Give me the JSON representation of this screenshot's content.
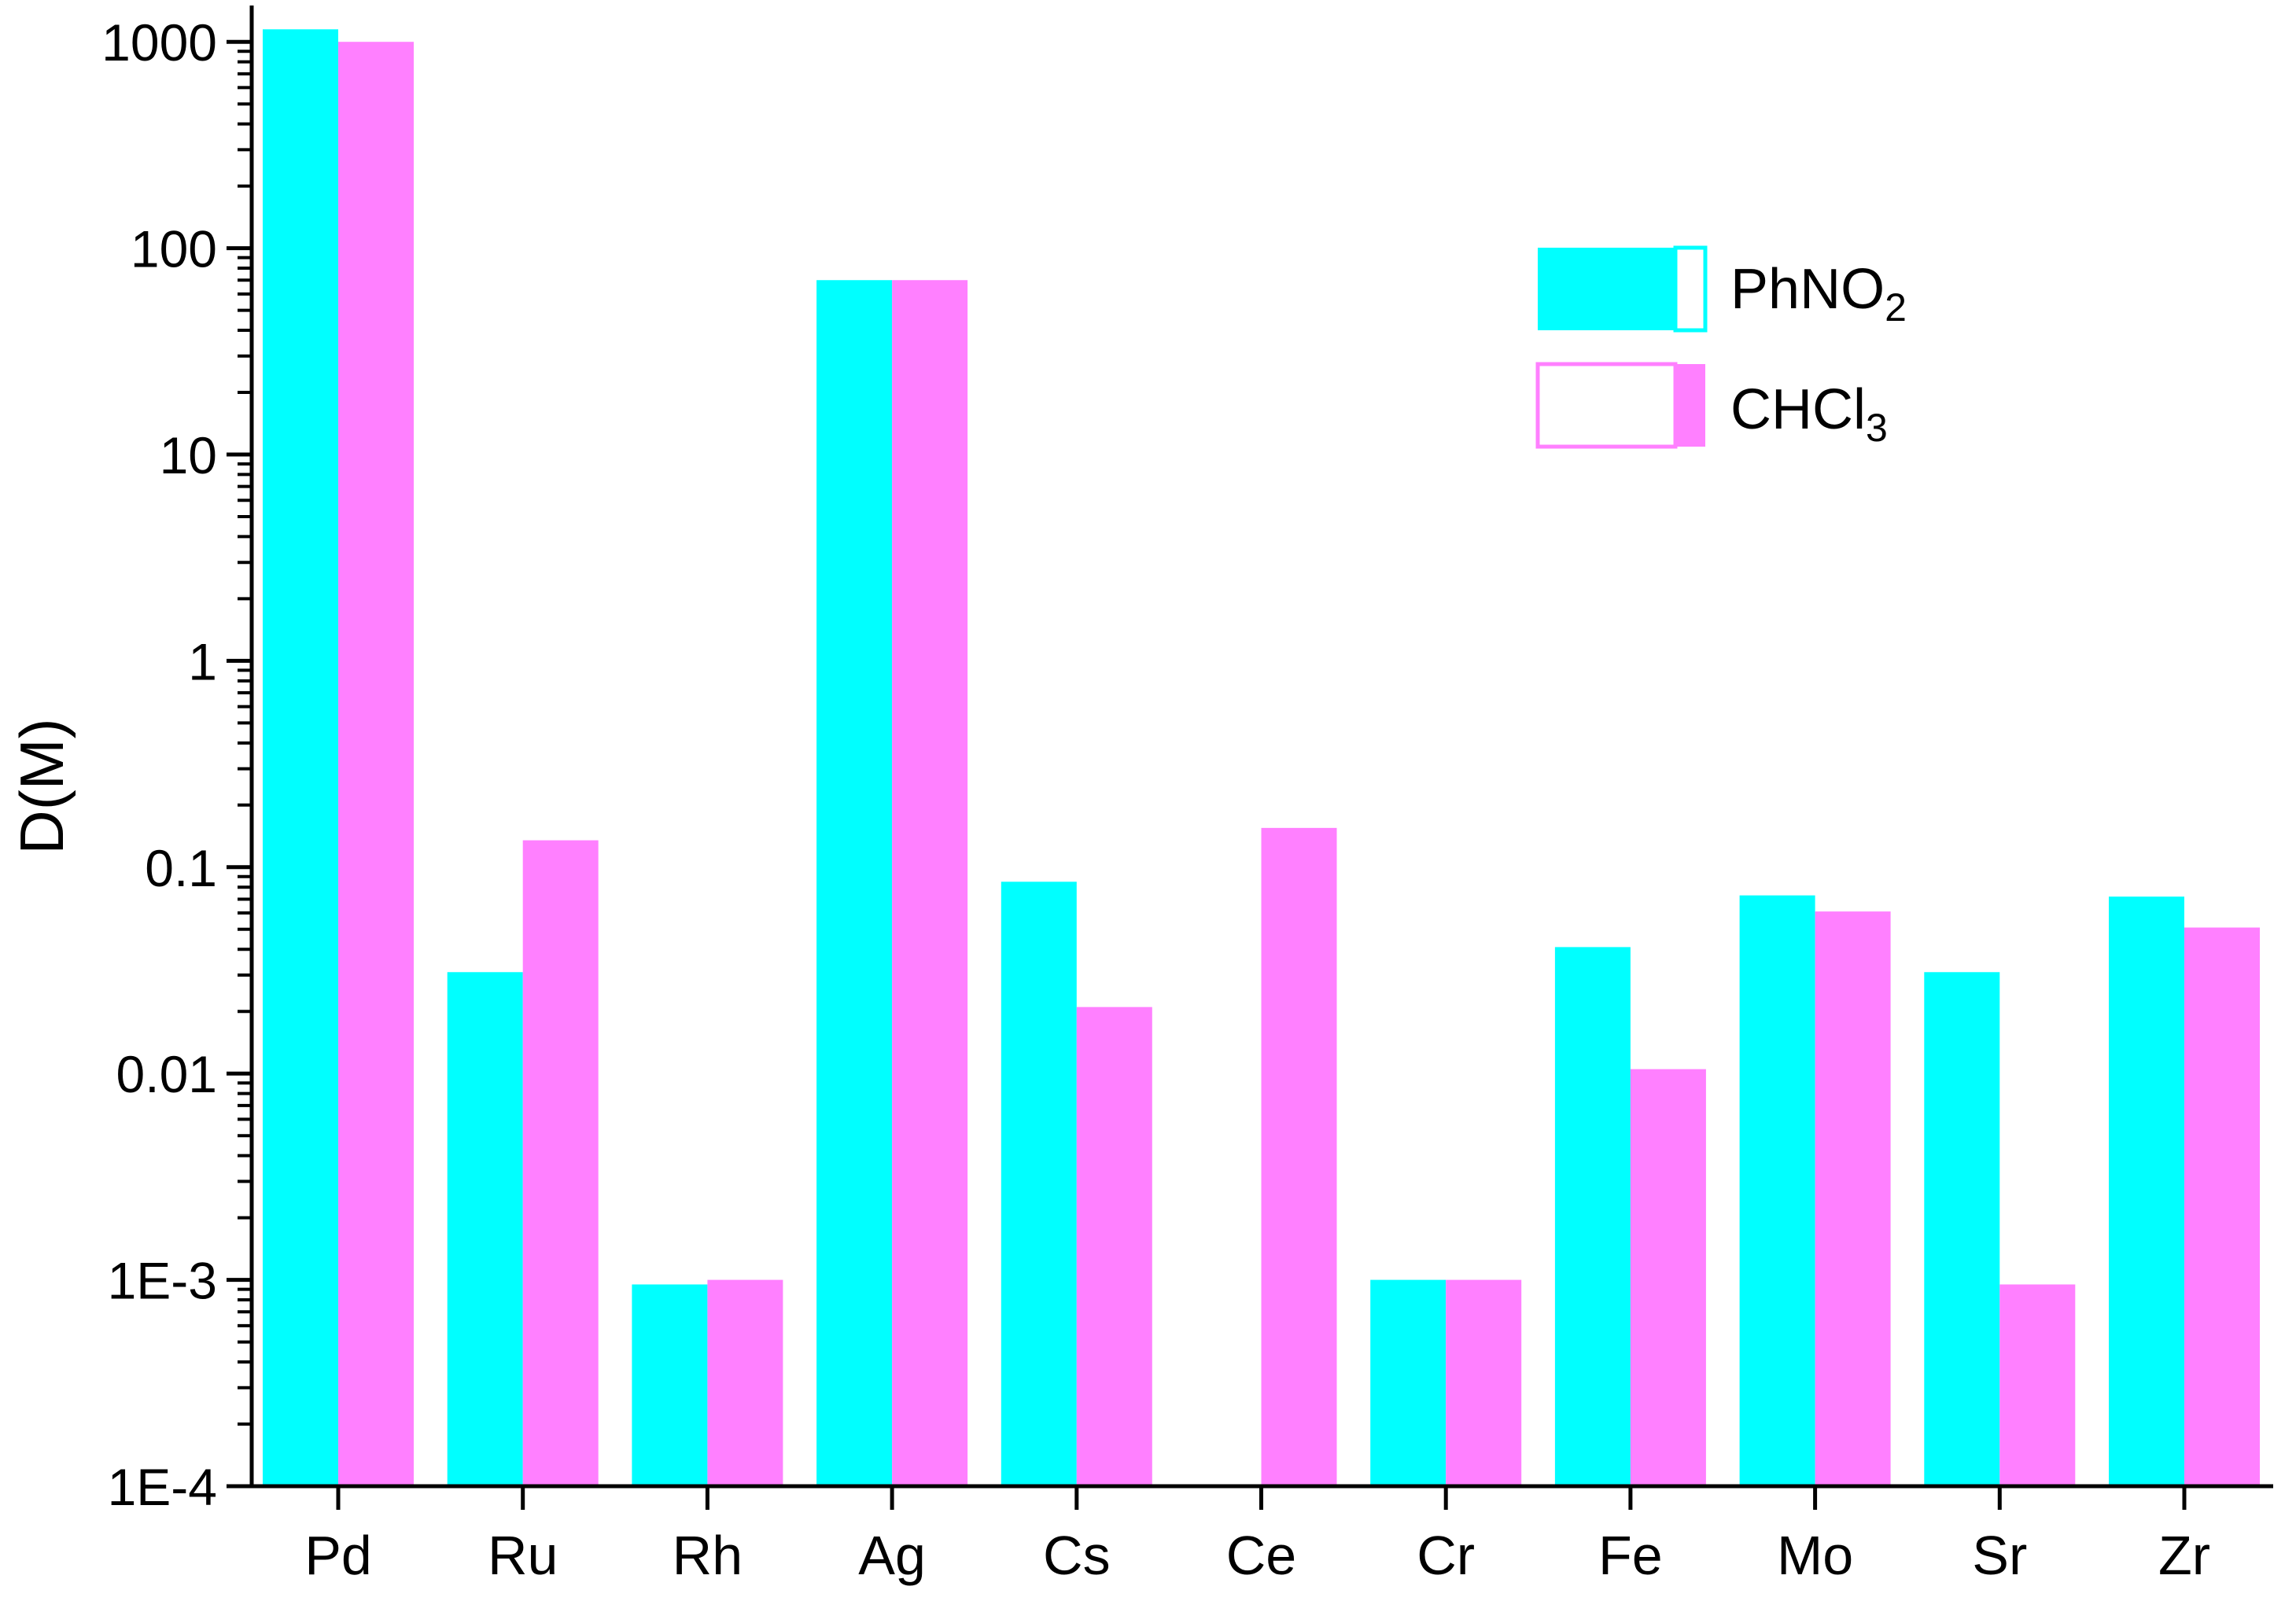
{
  "chart_data": {
    "type": "bar",
    "title": "",
    "xlabel": "",
    "ylabel": "D(M)",
    "yscale": "log",
    "ylim": [
      0.0001,
      1500
    ],
    "yticks": [
      {
        "value": 0.0001,
        "label": "1E-4"
      },
      {
        "value": 0.001,
        "label": "1E-3"
      },
      {
        "value": 0.01,
        "label": "0.01"
      },
      {
        "value": 0.1,
        "label": "0.1"
      },
      {
        "value": 1,
        "label": "1"
      },
      {
        "value": 10,
        "label": "10"
      },
      {
        "value": 100,
        "label": "100"
      },
      {
        "value": 1000,
        "label": "1000"
      }
    ],
    "categories": [
      "Pd",
      "Ru",
      "Rh",
      "Ag",
      "Cs",
      "Ce",
      "Cr",
      "Fe",
      "Mo",
      "Sr",
      "Zr"
    ],
    "grid": false,
    "legend_position": "top-right",
    "series": [
      {
        "key": "phno2",
        "legend_text": "PhNO",
        "legend_sub": "2",
        "color": "#00ffff",
        "values": [
          1150,
          0.031,
          0.00095,
          70,
          0.085,
          0.0001,
          0.001,
          0.041,
          0.073,
          0.031,
          0.072
        ]
      },
      {
        "key": "chcl3",
        "legend_text": "CHCl",
        "legend_sub": "3",
        "color": "#ff80ff",
        "values": [
          1000,
          0.135,
          0.001,
          70,
          0.021,
          0.155,
          0.001,
          0.0105,
          0.061,
          0.00095,
          0.051
        ]
      }
    ]
  }
}
